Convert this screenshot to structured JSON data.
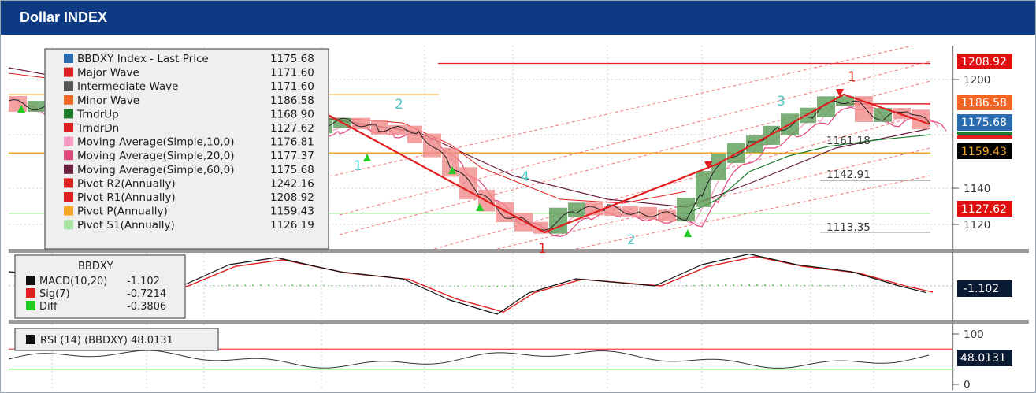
{
  "title": "Dollar INDEX",
  "colors": {
    "header": "#0d3a82",
    "price_up": "#5a9e57",
    "price_down": "#f08a8a",
    "major_wave": "#e02020",
    "pivot_p": "#f5a623",
    "pivot_s1": "#a6e3a1",
    "channel": "#f07878"
  },
  "chart_data": [
    {
      "type": "candlestick",
      "title": "",
      "y_ticks": [
        1120,
        1140,
        1200
      ],
      "ylim": [
        1107,
        1221
      ],
      "legend": [
        {
          "name": "BBDXY Index - Last Price",
          "value": "1175.68",
          "color": "#2b6cb0"
        },
        {
          "name": "Major Wave",
          "value": "1171.60",
          "color": "#e02020"
        },
        {
          "name": "Intermediate Wave",
          "value": "1171.60",
          "color": "#555555"
        },
        {
          "name": "Minor Wave",
          "value": "1186.58",
          "color": "#f26522"
        },
        {
          "name": "TrndrUp",
          "value": "1168.90",
          "color": "#1a7a2a"
        },
        {
          "name": "TrndrDn",
          "value": "1127.62",
          "color": "#e02020"
        },
        {
          "name": "Moving Average(Simple,10,0)",
          "value": "1176.81",
          "color": "#f49ac2"
        },
        {
          "name": "Moving Average(Simple,20,0)",
          "value": "1177.37",
          "color": "#e0457b"
        },
        {
          "name": "Moving Average(Simple,60,0)",
          "value": "1175.68",
          "color": "#6b1f3f"
        },
        {
          "name": "Pivot R2(Annually)",
          "value": "1242.16",
          "color": "#e02020"
        },
        {
          "name": "Pivot R1(Annually)",
          "value": "1208.92",
          "color": "#e02020"
        },
        {
          "name": "Pivot P(Annually)",
          "value": "1159.43",
          "color": "#f5a623"
        },
        {
          "name": "Pivot S1(Annually)",
          "value": "1126.19",
          "color": "#a6e3a1"
        }
      ],
      "right_tags": [
        {
          "value": "1208.92",
          "color": "#e01010"
        },
        {
          "value": "1186.58",
          "color": "#f26522"
        },
        {
          "value": "1175.68",
          "color": "#2b6cb0"
        },
        {
          "value": "1159.43",
          "color": "#000000"
        },
        {
          "value": "1127.62",
          "color": "#e01010"
        }
      ],
      "level_labels": [
        "1161.18",
        "1142.91",
        "1113.35"
      ],
      "wave_labels": [
        {
          "text": "1",
          "color": "#4fc6c6"
        },
        {
          "text": "2",
          "color": "#4fc6c6"
        },
        {
          "text": "4",
          "color": "#4fc6c6"
        },
        {
          "text": "2",
          "color": "#4fc6c6"
        },
        {
          "text": "3",
          "color": "#4fc6c6"
        },
        {
          "text": "1",
          "color": "#e02020"
        },
        {
          "text": "1",
          "color": "#e02020"
        }
      ]
    },
    {
      "type": "line",
      "title": "BBDXY",
      "legend": [
        {
          "name": "MACD(10,20)",
          "value": "-1.102",
          "color": "#111111"
        },
        {
          "name": "Sig(7)",
          "value": "-0.7214",
          "color": "#e02020"
        },
        {
          "name": "Diff",
          "value": "-0.3806",
          "color": "#22cc22"
        }
      ],
      "right_tags": [
        {
          "value": "-1.102",
          "color": "#0b1a33"
        }
      ]
    },
    {
      "type": "line",
      "title": "",
      "legend": [
        {
          "name": "RSI (14) (BBDXY)",
          "value": "48.0131",
          "color": "#111111"
        }
      ],
      "y_ticks": [
        0,
        100
      ],
      "ylim": [
        0,
        100
      ],
      "levels": [
        70,
        30
      ],
      "right_tags": [
        {
          "value": "48.0131",
          "color": "#0b1a33"
        }
      ]
    }
  ]
}
